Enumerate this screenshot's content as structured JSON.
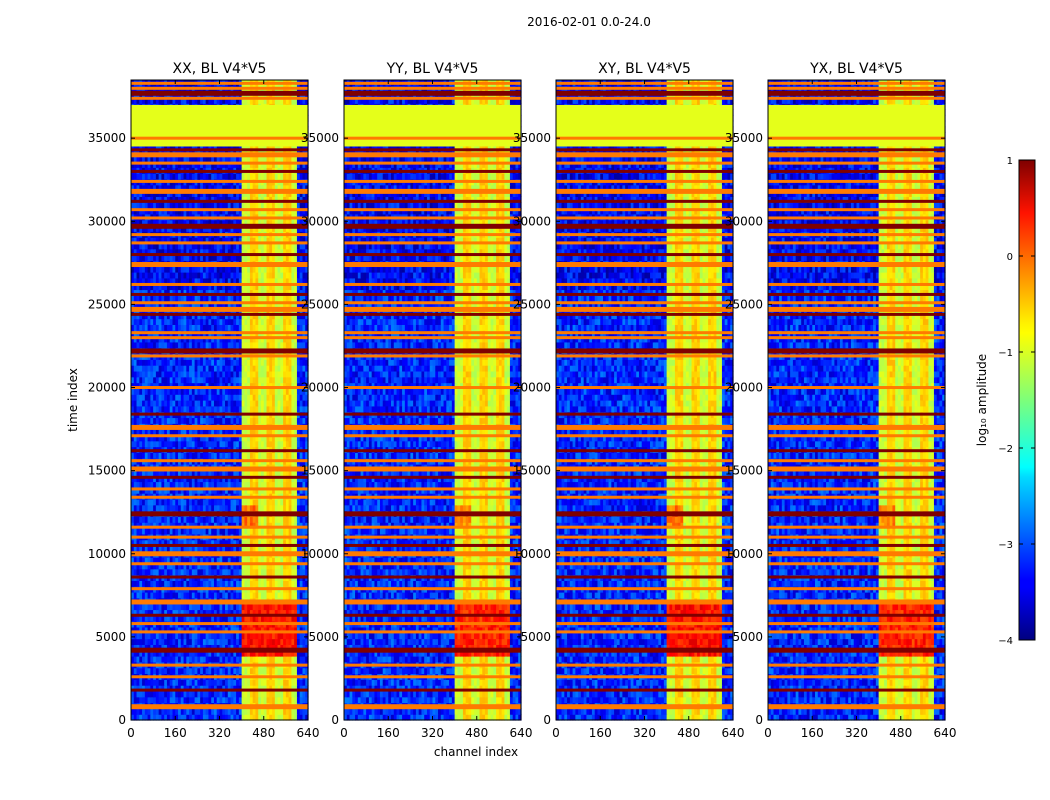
{
  "chart_data": {
    "type": "heatmap",
    "suptitle": "2016-02-01 0.0-24.0",
    "xlabel": "channel index",
    "ylabel": "time index",
    "xlim": [
      0,
      640
    ],
    "ylim": [
      0,
      38500
    ],
    "xticks": [
      0,
      160,
      320,
      480,
      640
    ],
    "yticks": [
      0,
      5000,
      10000,
      15000,
      20000,
      25000,
      30000,
      35000
    ],
    "panels": [
      {
        "title": "XX, BL V4*V5"
      },
      {
        "title": "YY, BL V4*V5"
      },
      {
        "title": "XY, BL V4*V5"
      },
      {
        "title": "YX, BL V4*V5"
      }
    ],
    "colormap": "jet",
    "colorbar": {
      "label": "log₁₀ amplitude",
      "vmin": -4,
      "vmax": 1,
      "ticks": [
        1,
        0,
        -1,
        -2,
        -3,
        -4
      ],
      "tick_labels": [
        "1",
        "0",
        "−1",
        "−2",
        "−3",
        "−4"
      ]
    },
    "bright_band_channels": [
      405,
      600
    ],
    "masked_block_time": [
      34500,
      37000
    ],
    "masked_block_value": -1.0,
    "flagged_rows_time": [
      800,
      1800,
      2600,
      3300,
      4200,
      5300,
      5800,
      6300,
      7100,
      7900,
      8600,
      9400,
      10000,
      10500,
      11000,
      11600,
      12400,
      13400,
      13900,
      14600,
      15100,
      15600,
      16200,
      17100,
      17600,
      18400,
      20000,
      21900,
      22200,
      23000,
      23300,
      24400,
      24700,
      25100,
      25600,
      26200,
      27400,
      28000,
      28700,
      29200,
      29700,
      30200,
      30700,
      31200,
      31800,
      32400,
      33000,
      33500,
      34000,
      34300,
      35000,
      37400,
      37700,
      38000,
      38300
    ],
    "hot_regions": [
      {
        "time": [
          3800,
          7000
        ],
        "channels": [
          405,
          600
        ],
        "peak": 0.3
      },
      {
        "time": [
          11700,
          12800
        ],
        "channels": [
          405,
          460
        ],
        "peak": -0.2
      }
    ]
  }
}
